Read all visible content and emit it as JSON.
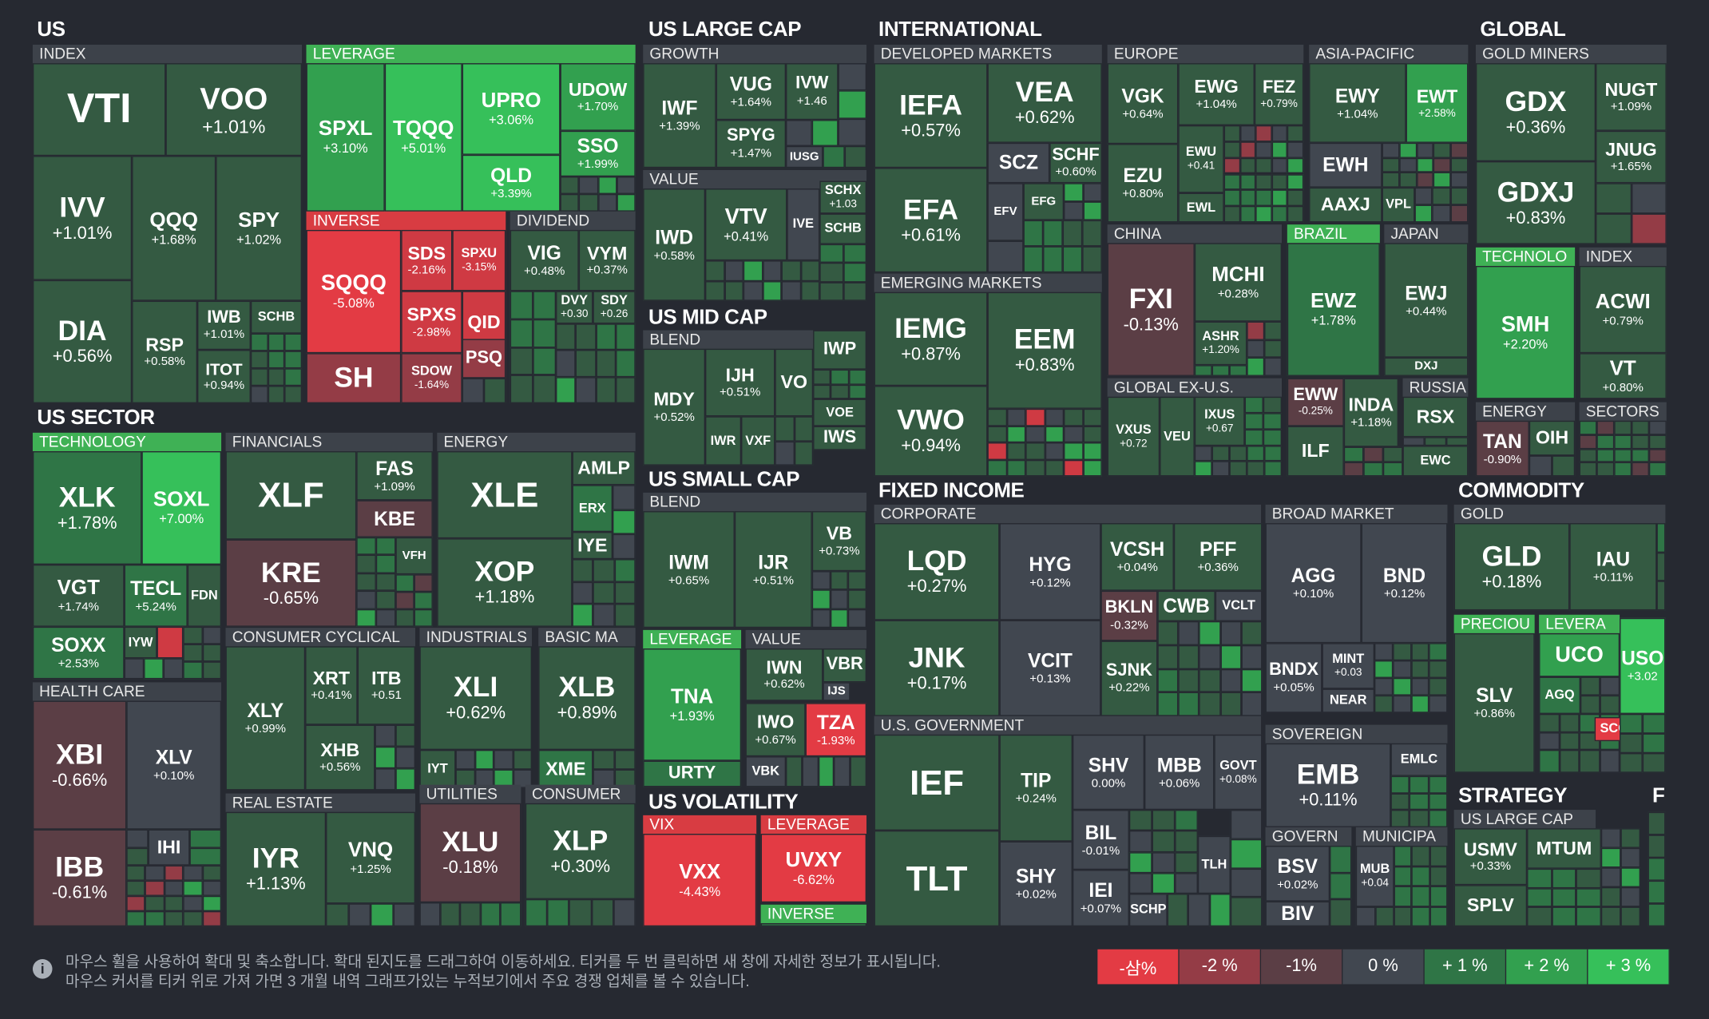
{
  "sections": {
    "us": {
      "title": "US",
      "index": "INDEX",
      "leverage": "LEVERAGE",
      "inverse": "INVERSE",
      "dividend": "DIVIDEND"
    },
    "large": {
      "title": "US LARGE CAP",
      "growth": "GROWTH",
      "value": "VALUE"
    },
    "mid": {
      "title": "US MID CAP",
      "blend": "BLEND"
    },
    "small": {
      "title": "US SMALL CAP",
      "blend": "BLEND",
      "leverage": "LEVERAGE",
      "value": "VALUE"
    },
    "vol": {
      "title": "US VOLATILITY",
      "vix": "VIX",
      "leverage": "LEVERAGE",
      "inverse": "INVERSE"
    },
    "intl": {
      "title": "INTERNATIONAL",
      "developed": "DEVELOPED MARKETS",
      "europe": "EUROPE",
      "asia": "ASIA-PACIFIC",
      "china": "CHINA",
      "brazil": "BRAZIL",
      "japan": "JAPAN",
      "emerging": "EMERGING MARKETS",
      "exus": "GLOBAL EX-U.S.",
      "russia": "RUSSIA"
    },
    "global": {
      "title": "GLOBAL",
      "gold": "GOLD MINERS",
      "tech": "TECHNOLO",
      "index": "INDEX",
      "energy": "ENERGY",
      "sectors": "SECTORS"
    },
    "sector": {
      "title": "US SECTOR",
      "tech": "TECHNOLOGY",
      "fin": "FINANCIALS",
      "energy": "ENERGY",
      "health": "HEALTH CARE",
      "cyc": "CONSUMER CYCLICAL",
      "ind": "INDUSTRIALS",
      "basic": "BASIC MA",
      "re": "REAL ESTATE",
      "util": "UTILITIES",
      "cons": "CONSUMER"
    },
    "fixed": {
      "title": "FIXED INCOME",
      "corp": "CORPORATE",
      "broad": "BROAD MARKET",
      "gov": "U.S. GOVERNMENT",
      "sov": "SOVEREIGN",
      "govern": "GOVERN",
      "muni": "MUNICIPA"
    },
    "commodity": {
      "title": "COMMODITY",
      "gold": "GOLD",
      "precious": "PRECIOU",
      "leverage": "LEVERA"
    },
    "strategy": {
      "title": "STRATEGY",
      "large": "US LARGE CAP",
      "f": "F"
    }
  },
  "tiles": {
    "VTI": {
      "s": "VTI",
      "c": ""
    },
    "VOO": {
      "s": "VOO",
      "c": "+1.01%"
    },
    "IVV": {
      "s": "IVV",
      "c": "+1.01%"
    },
    "QQQ": {
      "s": "QQQ",
      "c": "+1.68%"
    },
    "SPY": {
      "s": "SPY",
      "c": "+1.02%"
    },
    "DIA": {
      "s": "DIA",
      "c": "+0.56%"
    },
    "RSP": {
      "s": "RSP",
      "c": "+0.58%"
    },
    "IWB": {
      "s": "IWB",
      "c": "+1.01%"
    },
    "SCHB": {
      "s": "SCHB",
      "c": ""
    },
    "ITOT": {
      "s": "ITOT",
      "c": "+0.94%"
    },
    "SPXL": {
      "s": "SPXL",
      "c": "+3.10%"
    },
    "TQQQ": {
      "s": "TQQQ",
      "c": "+5.01%"
    },
    "UPRO": {
      "s": "UPRO",
      "c": "+3.06%"
    },
    "UDOW": {
      "s": "UDOW",
      "c": "+1.70%"
    },
    "SSO": {
      "s": "SSO",
      "c": "+1.99%"
    },
    "QLD": {
      "s": "QLD",
      "c": "+3.39%"
    },
    "SQQQ": {
      "s": "SQQQ",
      "c": "-5.08%"
    },
    "SDS": {
      "s": "SDS",
      "c": "-2.16%"
    },
    "SPXU": {
      "s": "SPXU",
      "c": "-3.15%"
    },
    "SPXS": {
      "s": "SPXS",
      "c": "-2.98%"
    },
    "QID": {
      "s": "QID",
      "c": ""
    },
    "SH": {
      "s": "SH",
      "c": ""
    },
    "SDOW": {
      "s": "SDOW",
      "c": "-1.64%"
    },
    "PSQ": {
      "s": "PSQ",
      "c": ""
    },
    "VIG": {
      "s": "VIG",
      "c": "+0.48%"
    },
    "VYM": {
      "s": "VYM",
      "c": "+0.37%"
    },
    "DVY": {
      "s": "DVY",
      "c": "+0.30"
    },
    "SDY": {
      "s": "SDY",
      "c": "+0.26"
    },
    "IWF": {
      "s": "IWF",
      "c": "+1.39%"
    },
    "VUG": {
      "s": "VUG",
      "c": "+1.64%"
    },
    "IVW": {
      "s": "IVW",
      "c": "+1.46"
    },
    "SPYG": {
      "s": "SPYG",
      "c": "+1.47%"
    },
    "IUSG": {
      "s": "IUSG",
      "c": ""
    },
    "IWD": {
      "s": "IWD",
      "c": "+0.58%"
    },
    "VTV": {
      "s": "VTV",
      "c": "+0.41%"
    },
    "IVE": {
      "s": "IVE",
      "c": ""
    },
    "SCHX": {
      "s": "SCHX",
      "c": "+1.03"
    },
    "SCHB2": {
      "s": "SCHB",
      "c": ""
    },
    "MDY": {
      "s": "MDY",
      "c": "+0.52%"
    },
    "IJH": {
      "s": "IJH",
      "c": "+0.51%"
    },
    "VO": {
      "s": "VO",
      "c": ""
    },
    "IWP": {
      "s": "IWP",
      "c": ""
    },
    "IWR": {
      "s": "IWR",
      "c": ""
    },
    "VXF": {
      "s": "VXF",
      "c": ""
    },
    "VOE": {
      "s": "VOE",
      "c": ""
    },
    "IWS": {
      "s": "IWS",
      "c": ""
    },
    "IWM": {
      "s": "IWM",
      "c": "+0.65%"
    },
    "IJR": {
      "s": "IJR",
      "c": "+0.51%"
    },
    "VB": {
      "s": "VB",
      "c": "+0.73%"
    },
    "TNA": {
      "s": "TNA",
      "c": "+1.93%"
    },
    "URTY": {
      "s": "URTY",
      "c": ""
    },
    "IWN": {
      "s": "IWN",
      "c": "+0.62%"
    },
    "VBR": {
      "s": "VBR",
      "c": ""
    },
    "IJS": {
      "s": "IJS",
      "c": ""
    },
    "IWO": {
      "s": "IWO",
      "c": "+0.67%"
    },
    "TZA": {
      "s": "TZA",
      "c": "-1.93%"
    },
    "VBK": {
      "s": "VBK",
      "c": ""
    },
    "VXX": {
      "s": "VXX",
      "c": "-4.43%"
    },
    "UVXY": {
      "s": "UVXY",
      "c": "-6.62%"
    },
    "IEFA": {
      "s": "IEFA",
      "c": "+0.57%"
    },
    "VEA": {
      "s": "VEA",
      "c": "+0.62%"
    },
    "SCZ": {
      "s": "SCZ",
      "c": ""
    },
    "SCHF": {
      "s": "SCHF",
      "c": "+0.60%"
    },
    "EFA": {
      "s": "EFA",
      "c": "+0.61%"
    },
    "EFV": {
      "s": "EFV",
      "c": ""
    },
    "EFG": {
      "s": "EFG",
      "c": ""
    },
    "VGK": {
      "s": "VGK",
      "c": "+0.64%"
    },
    "EWG": {
      "s": "EWG",
      "c": "+1.04%"
    },
    "FEZ": {
      "s": "FEZ",
      "c": "+0.79%"
    },
    "EZU": {
      "s": "EZU",
      "c": "+0.80%"
    },
    "EWU": {
      "s": "EWU",
      "c": "+0.41"
    },
    "EWL": {
      "s": "EWL",
      "c": ""
    },
    "EWY": {
      "s": "EWY",
      "c": "+1.04%"
    },
    "EWT": {
      "s": "EWT",
      "c": "+2.58%"
    },
    "EWH": {
      "s": "EWH",
      "c": ""
    },
    "AAXJ": {
      "s": "AAXJ",
      "c": ""
    },
    "VPL": {
      "s": "VPL",
      "c": ""
    },
    "FXI": {
      "s": "FXI",
      "c": "-0.13%"
    },
    "MCHI": {
      "s": "MCHI",
      "c": "+0.28%"
    },
    "ASHR": {
      "s": "ASHR",
      "c": "+1.20%"
    },
    "EWZ": {
      "s": "EWZ",
      "c": "+1.78%"
    },
    "EWJ": {
      "s": "EWJ",
      "c": "+0.44%"
    },
    "DXJ": {
      "s": "DXJ",
      "c": ""
    },
    "IEMG": {
      "s": "IEMG",
      "c": "+0.87%"
    },
    "EEM": {
      "s": "EEM",
      "c": "+0.83%"
    },
    "VWO": {
      "s": "VWO",
      "c": "+0.94%"
    },
    "VXUS": {
      "s": "VXUS",
      "c": "+0.72"
    },
    "VEU": {
      "s": "VEU",
      "c": ""
    },
    "IXUS": {
      "s": "IXUS",
      "c": "+0.67"
    },
    "EWW": {
      "s": "EWW",
      "c": "-0.25%"
    },
    "INDA": {
      "s": "INDA",
      "c": "+1.18%"
    },
    "ILF": {
      "s": "ILF",
      "c": ""
    },
    "RSX": {
      "s": "RSX",
      "c": ""
    },
    "EWC": {
      "s": "EWC",
      "c": ""
    },
    "GDX": {
      "s": "GDX",
      "c": "+0.36%"
    },
    "NUGT": {
      "s": "NUGT",
      "c": "+1.09%"
    },
    "JNUG": {
      "s": "JNUG",
      "c": "+1.65%"
    },
    "GDXJ": {
      "s": "GDXJ",
      "c": "+0.83%"
    },
    "SMH": {
      "s": "SMH",
      "c": "+2.20%"
    },
    "ACWI": {
      "s": "ACWI",
      "c": "+0.79%"
    },
    "VT": {
      "s": "VT",
      "c": "+0.80%"
    },
    "TAN": {
      "s": "TAN",
      "c": "-0.90%"
    },
    "OIH": {
      "s": "OIH",
      "c": ""
    },
    "XLK": {
      "s": "XLK",
      "c": "+1.78%"
    },
    "SOXL": {
      "s": "SOXL",
      "c": "+7.00%"
    },
    "VGT": {
      "s": "VGT",
      "c": "+1.74%"
    },
    "TECL": {
      "s": "TECL",
      "c": "+5.24%"
    },
    "FDN": {
      "s": "FDN",
      "c": ""
    },
    "SOXX": {
      "s": "SOXX",
      "c": "+2.53%"
    },
    "IYW": {
      "s": "IYW",
      "c": ""
    },
    "XLF": {
      "s": "XLF",
      "c": ""
    },
    "FAS": {
      "s": "FAS",
      "c": "+1.09%"
    },
    "KBE": {
      "s": "KBE",
      "c": ""
    },
    "KRE": {
      "s": "KRE",
      "c": "-0.65%"
    },
    "VFH": {
      "s": "VFH",
      "c": ""
    },
    "XLE": {
      "s": "XLE",
      "c": ""
    },
    "AMLP": {
      "s": "AMLP",
      "c": ""
    },
    "ERX": {
      "s": "ERX",
      "c": ""
    },
    "IYE": {
      "s": "IYE",
      "c": ""
    },
    "XOP": {
      "s": "XOP",
      "c": "+1.18%"
    },
    "XBI": {
      "s": "XBI",
      "c": "-0.66%"
    },
    "XLV": {
      "s": "XLV",
      "c": "+0.10%"
    },
    "IBB": {
      "s": "IBB",
      "c": "-0.61%"
    },
    "IHI": {
      "s": "IHI",
      "c": ""
    },
    "XLY": {
      "s": "XLY",
      "c": "+0.99%"
    },
    "XRT": {
      "s": "XRT",
      "c": "+0.41%"
    },
    "ITB": {
      "s": "ITB",
      "c": "+0.51"
    },
    "XHB": {
      "s": "XHB",
      "c": "+0.56%"
    },
    "XLI": {
      "s": "XLI",
      "c": "+0.62%"
    },
    "IYT": {
      "s": "IYT",
      "c": ""
    },
    "XLB": {
      "s": "XLB",
      "c": "+0.89%"
    },
    "XME": {
      "s": "XME",
      "c": ""
    },
    "IYR": {
      "s": "IYR",
      "c": "+1.13%"
    },
    "VNQ": {
      "s": "VNQ",
      "c": "+1.25%"
    },
    "XLU": {
      "s": "XLU",
      "c": "-0.18%"
    },
    "XLP": {
      "s": "XLP",
      "c": "+0.30%"
    },
    "LQD": {
      "s": "LQD",
      "c": "+0.27%"
    },
    "HYG": {
      "s": "HYG",
      "c": "+0.12%"
    },
    "VCSH": {
      "s": "VCSH",
      "c": "+0.04%"
    },
    "PFF": {
      "s": "PFF",
      "c": "+0.36%"
    },
    "BKLN": {
      "s": "BKLN",
      "c": "-0.32%"
    },
    "CWB": {
      "s": "CWB",
      "c": ""
    },
    "VCLT": {
      "s": "VCLT",
      "c": ""
    },
    "JNK": {
      "s": "JNK",
      "c": "+0.17%"
    },
    "VCIT": {
      "s": "VCIT",
      "c": "+0.13%"
    },
    "SJNK": {
      "s": "SJNK",
      "c": "+0.22%"
    },
    "AGG": {
      "s": "AGG",
      "c": "+0.10%"
    },
    "BND": {
      "s": "BND",
      "c": "+0.12%"
    },
    "BNDX": {
      "s": "BNDX",
      "c": "+0.05%"
    },
    "MINT": {
      "s": "MINT",
      "c": "+0.03"
    },
    "NEAR": {
      "s": "NEAR",
      "c": ""
    },
    "IEF": {
      "s": "IEF",
      "c": ""
    },
    "TIP": {
      "s": "TIP",
      "c": "+0.24%"
    },
    "SHV": {
      "s": "SHV",
      "c": "0.00%"
    },
    "MBB": {
      "s": "MBB",
      "c": "+0.06%"
    },
    "GOVT": {
      "s": "GOVT",
      "c": "+0.08%"
    },
    "TLT": {
      "s": "TLT",
      "c": ""
    },
    "SHY": {
      "s": "SHY",
      "c": "+0.02%"
    },
    "BIL": {
      "s": "BIL",
      "c": "-0.01%"
    },
    "IEI": {
      "s": "IEI",
      "c": "+0.07%"
    },
    "SCHP": {
      "s": "SCHP",
      "c": ""
    },
    "TLH": {
      "s": "TLH",
      "c": ""
    },
    "EMB": {
      "s": "EMB",
      "c": "+0.11%"
    },
    "EMLC": {
      "s": "EMLC",
      "c": ""
    },
    "BSV": {
      "s": "BSV",
      "c": "+0.02%"
    },
    "BIV": {
      "s": "BIV",
      "c": ""
    },
    "MUB": {
      "s": "MUB",
      "c": "+0.04"
    },
    "GLD": {
      "s": "GLD",
      "c": "+0.18%"
    },
    "IAU": {
      "s": "IAU",
      "c": "+0.11%"
    },
    "SLV": {
      "s": "SLV",
      "c": "+0.86%"
    },
    "UCO": {
      "s": "UCO",
      "c": ""
    },
    "USO": {
      "s": "USO",
      "c": "+3.02"
    },
    "AGQ": {
      "s": "AGQ",
      "c": ""
    },
    "SCO": {
      "s": "SCO",
      "c": ""
    },
    "USMV": {
      "s": "USMV",
      "c": "+0.33%"
    },
    "MTUM": {
      "s": "MTUM",
      "c": ""
    },
    "SPLV": {
      "s": "SPLV",
      "c": ""
    }
  },
  "info": {
    "line1": "마우스 휠을 사용하여 확대 및 축소합니다. 확대 된지도를 드래그하여 이동하세요. 티커를 두 번 클릭하면 새 창에 자세한 정보가 표시됩니다.",
    "line2": "마우스 커서를 티커 위로 가져 가면 3 개월 내역 그래프가있는 누적보기에서 주요 경쟁 업체를 볼 수 있습니다.",
    "icon": "info-icon"
  },
  "legend": [
    {
      "label": "-삼%",
      "color": "#e33b44"
    },
    {
      "label": "-2 %",
      "color": "#943c46"
    },
    {
      "label": "-1%",
      "color": "#5b3e45"
    },
    {
      "label": "0 %",
      "color": "#414750"
    },
    {
      "label": "+ 1 %",
      "color": "#2f7546"
    },
    {
      "label": "+ 2 %",
      "color": "#32a04f"
    },
    {
      "label": "+ 3 %",
      "color": "#36c05a"
    }
  ]
}
